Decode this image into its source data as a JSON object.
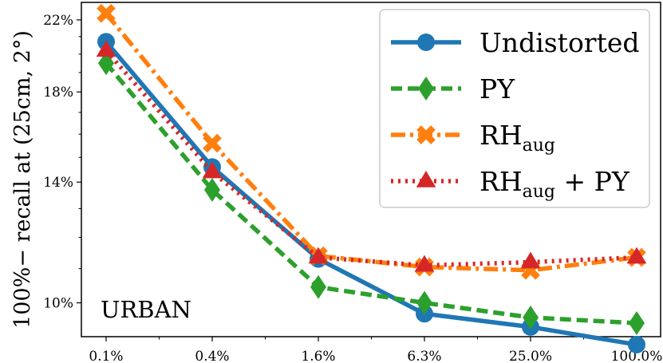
{
  "chart_data": {
    "type": "line",
    "ylabel": "100%− recall at (25cm, 2°)",
    "annotation": "URBAN",
    "categories": [
      "0.1%",
      "0.4%",
      "1.6%",
      "6.3%",
      "25.0%",
      "100.0%"
    ],
    "yticks": [
      {
        "label": "10%",
        "value": 10
      },
      {
        "label": "14%",
        "value": 14
      },
      {
        "label": "18%",
        "value": 18
      },
      {
        "label": "22%",
        "value": 22
      }
    ],
    "ylim": [
      9.1,
      23.1
    ],
    "yscale": "log",
    "legend_position": "top-right",
    "series": [
      {
        "name": "Undistorted",
        "name_main": "Undistorted",
        "name_sub": "",
        "name_tail": "",
        "color": "#1f77b4",
        "dash": "solid",
        "marker": "circle",
        "values": [
          20.7,
          14.6,
          11.3,
          9.7,
          9.35,
          8.9
        ]
      },
      {
        "name": "PY",
        "name_main": "PY",
        "name_sub": "",
        "name_tail": "",
        "color": "#2ca02c",
        "dash": "dashed",
        "marker": "diamond",
        "values": [
          19.5,
          13.7,
          10.45,
          10.0,
          9.6,
          9.45
        ]
      },
      {
        "name": "RHaug",
        "name_main": "RH",
        "name_sub": "aug",
        "name_tail": "",
        "color": "#ff7f0e",
        "dash": "dashdot",
        "marker": "x",
        "values": [
          22.4,
          15.6,
          11.4,
          11.05,
          10.95,
          11.35
        ]
      },
      {
        "name": "RHaug + PY",
        "name_main": "RH",
        "name_sub": "aug",
        "name_tail": " + PY",
        "color": "#d62728",
        "dash": "dotted",
        "marker": "triangle",
        "values": [
          20.2,
          14.4,
          11.35,
          11.1,
          11.2,
          11.35
        ]
      }
    ]
  }
}
